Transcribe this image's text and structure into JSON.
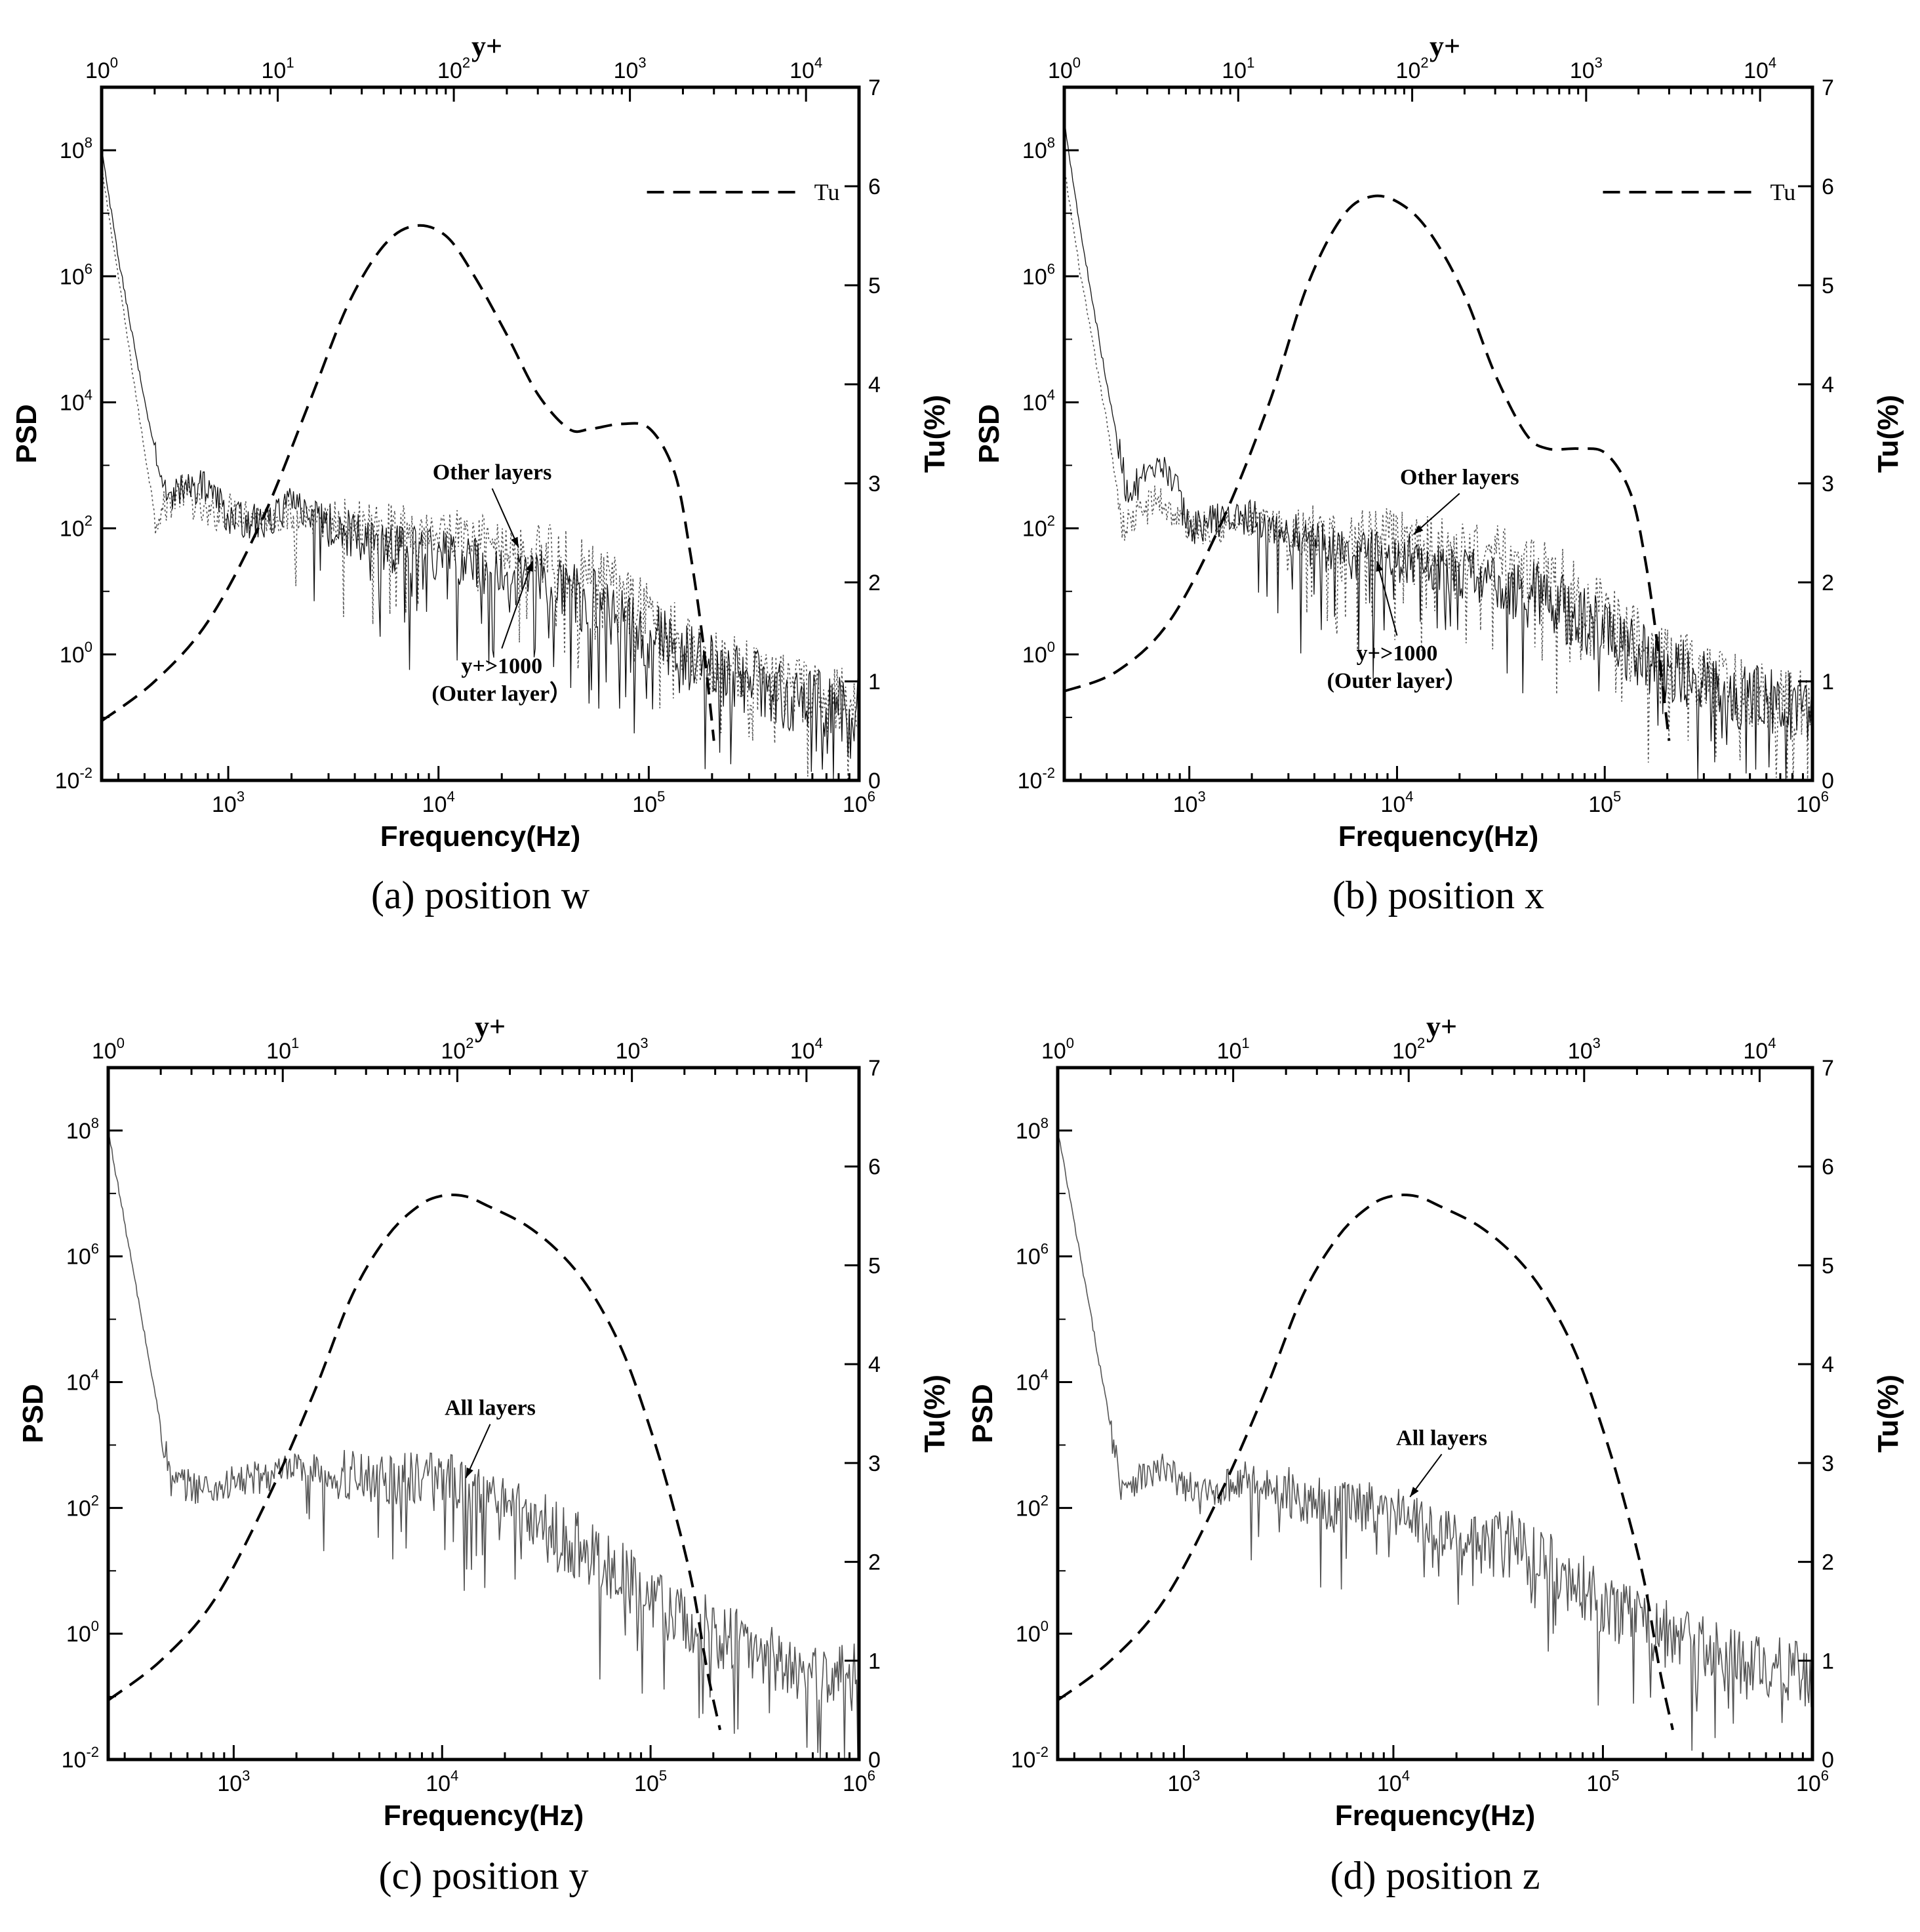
{
  "chart_data": [
    {
      "type": "line",
      "caption": "(a)  position w",
      "xlabel": "Frequency(Hz)",
      "ylabel": "PSD",
      "y2label": "Tu(%)",
      "top_axis_label": "y+",
      "xscale": "log",
      "yscale": "log",
      "xlim": [
        250,
        1000000
      ],
      "ylim": [
        0.01,
        1000000000
      ],
      "y2lim": [
        0,
        7
      ],
      "top_xlim": [
        1,
        20000
      ],
      "x_ticks": [
        {
          "base": "10",
          "exp": "3"
        },
        {
          "base": "10",
          "exp": "4"
        },
        {
          "base": "10",
          "exp": "5"
        },
        {
          "base": "10",
          "exp": "6"
        }
      ],
      "y_ticks": [
        {
          "base": "10",
          "exp": "-2"
        },
        {
          "base": "10",
          "exp": "0"
        },
        {
          "base": "10",
          "exp": "2"
        },
        {
          "base": "10",
          "exp": "4"
        },
        {
          "base": "10",
          "exp": "6"
        },
        {
          "base": "10",
          "exp": "8"
        }
      ],
      "y2_ticks": [
        "0",
        "1",
        "2",
        "3",
        "4",
        "5",
        "6",
        "7"
      ],
      "top_ticks": [
        {
          "base": "10",
          "exp": "0"
        },
        {
          "base": "10",
          "exp": "1"
        },
        {
          "base": "10",
          "exp": "2"
        },
        {
          "base": "10",
          "exp": "3"
        },
        {
          "base": "10",
          "exp": "4"
        }
      ],
      "legend": {
        "label": "Tu",
        "position": "top-right"
      },
      "annotations": [
        {
          "lines": [
            "Other layers"
          ],
          "at": [
            18000,
            600
          ],
          "arrow_to": [
            24000,
            50
          ]
        },
        {
          "lines": [
            "y+>1000",
            "(Outer layer）"
          ],
          "at": [
            20000,
            0.5
          ],
          "arrow_to": [
            28000,
            30
          ]
        }
      ],
      "tu_series": {
        "name": "Tu",
        "yplus": [
          1,
          2,
          4,
          8,
          15,
          25,
          40,
          60,
          90,
          130,
          200,
          300,
          450,
          600,
          900,
          1300,
          1800,
          2200,
          2600,
          3000
        ],
        "values": [
          0.6,
          1.0,
          1.6,
          2.6,
          3.8,
          4.8,
          5.4,
          5.6,
          5.5,
          5.1,
          4.5,
          3.9,
          3.55,
          3.55,
          3.6,
          3.55,
          3.1,
          2.3,
          1.4,
          0.4
        ]
      },
      "psd_series": [
        {
          "name": "Other layers",
          "style": "dotted",
          "points": [
            [
              250,
              50000000
            ],
            [
              300,
              1000000
            ],
            [
              380,
              5000
            ],
            [
              450,
              150
            ],
            [
              600,
              400
            ],
            [
              800,
              150
            ],
            [
              1000,
              200
            ],
            [
              1500,
              150
            ],
            [
              2000,
              150
            ],
            [
              5000,
              100
            ],
            [
              10000,
              90
            ],
            [
              30000,
              40
            ],
            [
              60000,
              15
            ],
            [
              100000,
              4
            ],
            [
              200000,
              0.8
            ],
            [
              500000,
              0.25
            ],
            [
              1000000,
              0.15
            ]
          ]
        },
        {
          "name": "y+>1000 (Outer layer)",
          "style": "solid",
          "points": [
            [
              250,
              100000000
            ],
            [
              300,
              2000000
            ],
            [
              400,
              10000
            ],
            [
              500,
              350
            ],
            [
              800,
              500
            ],
            [
              1000,
              150
            ],
            [
              1500,
              120
            ],
            [
              2000,
              250
            ],
            [
              5000,
              50
            ],
            [
              10000,
              40
            ],
            [
              30000,
              15
            ],
            [
              60000,
              6
            ],
            [
              100000,
              2
            ],
            [
              200000,
              0.6
            ],
            [
              500000,
              0.2
            ],
            [
              1000000,
              0.12
            ]
          ]
        }
      ]
    },
    {
      "type": "line",
      "caption": "(b)  position x",
      "xlabel": "Frequency(Hz)",
      "ylabel": "PSD",
      "y2label": "Tu(%)",
      "top_axis_label": "y+",
      "xscale": "log",
      "yscale": "log",
      "xlim": [
        250,
        1000000
      ],
      "ylim": [
        0.01,
        1000000000
      ],
      "y2lim": [
        0,
        7
      ],
      "top_xlim": [
        1,
        20000
      ],
      "x_ticks": [
        {
          "base": "10",
          "exp": "3"
        },
        {
          "base": "10",
          "exp": "4"
        },
        {
          "base": "10",
          "exp": "5"
        },
        {
          "base": "10",
          "exp": "6"
        }
      ],
      "y_ticks": [
        {
          "base": "10",
          "exp": "-2"
        },
        {
          "base": "10",
          "exp": "0"
        },
        {
          "base": "10",
          "exp": "2"
        },
        {
          "base": "10",
          "exp": "4"
        },
        {
          "base": "10",
          "exp": "6"
        },
        {
          "base": "10",
          "exp": "8"
        }
      ],
      "y2_ticks": [
        "0",
        "1",
        "2",
        "3",
        "4",
        "5",
        "6",
        "7"
      ],
      "top_ticks": [
        {
          "base": "10",
          "exp": "0"
        },
        {
          "base": "10",
          "exp": "1"
        },
        {
          "base": "10",
          "exp": "2"
        },
        {
          "base": "10",
          "exp": "3"
        },
        {
          "base": "10",
          "exp": "4"
        }
      ],
      "legend": {
        "label": "Tu",
        "position": "top-right"
      },
      "annotations": [
        {
          "lines": [
            "Other layers"
          ],
          "at": [
            20000,
            500
          ],
          "arrow_to": [
            12000,
            80
          ]
        },
        {
          "lines": [
            "y+>1000",
            "(Outer layer）"
          ],
          "at": [
            10000,
            0.8
          ],
          "arrow_to": [
            8000,
            30
          ]
        }
      ],
      "tu_series": {
        "name": "Tu",
        "yplus": [
          1,
          2,
          4,
          8,
          15,
          25,
          40,
          60,
          90,
          130,
          200,
          300,
          450,
          600,
          900,
          1300,
          1800,
          2200,
          2600,
          3000
        ],
        "values": [
          0.9,
          1.1,
          1.6,
          2.6,
          3.8,
          5.0,
          5.7,
          5.9,
          5.8,
          5.5,
          4.9,
          4.1,
          3.5,
          3.35,
          3.35,
          3.3,
          2.9,
          2.2,
          1.3,
          0.4
        ]
      },
      "psd_series": [
        {
          "name": "Other layers",
          "style": "dotted",
          "points": [
            [
              250,
              50000000
            ],
            [
              300,
              1000000
            ],
            [
              400,
              5000
            ],
            [
              480,
              100
            ],
            [
              700,
              300
            ],
            [
              1000,
              100
            ],
            [
              2000,
              120
            ],
            [
              5000,
              80
            ],
            [
              10000,
              80
            ],
            [
              30000,
              40
            ],
            [
              60000,
              15
            ],
            [
              100000,
              4
            ],
            [
              200000,
              0.8
            ],
            [
              500000,
              0.25
            ],
            [
              1000000,
              0.15
            ]
          ]
        },
        {
          "name": "y+>1000 (Outer layer)",
          "style": "solid",
          "points": [
            [
              250,
              300000000
            ],
            [
              300,
              5000000
            ],
            [
              400,
              20000
            ],
            [
              500,
              400
            ],
            [
              800,
              900
            ],
            [
              1000,
              100
            ],
            [
              1500,
              150
            ],
            [
              2000,
              150
            ],
            [
              5000,
              40
            ],
            [
              10000,
              35
            ],
            [
              30000,
              15
            ],
            [
              60000,
              6
            ],
            [
              100000,
              2
            ],
            [
              200000,
              0.6
            ],
            [
              500000,
              0.2
            ],
            [
              1000000,
              0.12
            ]
          ]
        }
      ]
    },
    {
      "type": "line",
      "caption": "(c)  position y",
      "xlabel": "Frequency(Hz)",
      "ylabel": "PSD",
      "y2label": "Tu(%)",
      "top_axis_label": "y+",
      "xscale": "log",
      "yscale": "log",
      "xlim": [
        250,
        1000000
      ],
      "ylim": [
        0.01,
        1000000000
      ],
      "y2lim": [
        0,
        7
      ],
      "top_xlim": [
        1,
        20000
      ],
      "x_ticks": [
        {
          "base": "10",
          "exp": "3"
        },
        {
          "base": "10",
          "exp": "4"
        },
        {
          "base": "10",
          "exp": "5"
        },
        {
          "base": "10",
          "exp": "6"
        }
      ],
      "y_ticks": [
        {
          "base": "10",
          "exp": "-2"
        },
        {
          "base": "10",
          "exp": "0"
        },
        {
          "base": "10",
          "exp": "2"
        },
        {
          "base": "10",
          "exp": "4"
        },
        {
          "base": "10",
          "exp": "6"
        },
        {
          "base": "10",
          "exp": "8"
        }
      ],
      "y2_ticks": [
        "0",
        "1",
        "2",
        "3",
        "4",
        "5",
        "6",
        "7"
      ],
      "top_ticks": [
        {
          "base": "10",
          "exp": "0"
        },
        {
          "base": "10",
          "exp": "1"
        },
        {
          "base": "10",
          "exp": "2"
        },
        {
          "base": "10",
          "exp": "3"
        },
        {
          "base": "10",
          "exp": "4"
        }
      ],
      "annotations": [
        {
          "lines": [
            "All layers"
          ],
          "at": [
            17000,
            3000
          ],
          "arrow_to": [
            13000,
            300
          ]
        }
      ],
      "tu_series": {
        "name": "Tu",
        "yplus": [
          1,
          2,
          4,
          8,
          15,
          25,
          40,
          60,
          80,
          110,
          150,
          250,
          400,
          600,
          900,
          1300,
          1700,
          2200,
          2700,
          3200
        ],
        "values": [
          0.6,
          1.0,
          1.6,
          2.6,
          3.7,
          4.7,
          5.3,
          5.6,
          5.7,
          5.7,
          5.6,
          5.4,
          5.1,
          4.7,
          4.1,
          3.3,
          2.6,
          1.8,
          0.9,
          0.3
        ]
      },
      "psd_series": [
        {
          "name": "All layers",
          "style": "solid",
          "points": [
            [
              250,
              100000000
            ],
            [
              500,
              250
            ],
            [
              800,
              200
            ],
            [
              1000,
              250
            ],
            [
              2000,
              400
            ],
            [
              5000,
              300
            ],
            [
              10000,
              300
            ],
            [
              20000,
              150
            ],
            [
              30000,
              50
            ],
            [
              60000,
              15
            ],
            [
              100000,
              4
            ],
            [
              200000,
              1
            ],
            [
              500000,
              0.3
            ],
            [
              1000000,
              0.2
            ]
          ]
        }
      ]
    },
    {
      "type": "line",
      "caption": "(d)  position z",
      "xlabel": "Frequency(Hz)",
      "ylabel": "PSD",
      "y2label": "Tu(%)",
      "top_axis_label": "y+",
      "xscale": "log",
      "yscale": "log",
      "xlim": [
        250,
        1000000
      ],
      "ylim": [
        0.01,
        1000000000
      ],
      "y2lim": [
        0,
        7
      ],
      "top_xlim": [
        1,
        20000
      ],
      "x_ticks": [
        {
          "base": "10",
          "exp": "3"
        },
        {
          "base": "10",
          "exp": "4"
        },
        {
          "base": "10",
          "exp": "5"
        },
        {
          "base": "10",
          "exp": "6"
        }
      ],
      "y_ticks": [
        {
          "base": "10",
          "exp": "-2"
        },
        {
          "base": "10",
          "exp": "0"
        },
        {
          "base": "10",
          "exp": "2"
        },
        {
          "base": "10",
          "exp": "4"
        },
        {
          "base": "10",
          "exp": "6"
        },
        {
          "base": "10",
          "exp": "8"
        }
      ],
      "y2_ticks": [
        "0",
        "1",
        "2",
        "3",
        "4",
        "5",
        "6",
        "7"
      ],
      "top_ticks": [
        {
          "base": "10",
          "exp": "0"
        },
        {
          "base": "10",
          "exp": "1"
        },
        {
          "base": "10",
          "exp": "2"
        },
        {
          "base": "10",
          "exp": "3"
        },
        {
          "base": "10",
          "exp": "4"
        }
      ],
      "annotations": [
        {
          "lines": [
            "All layers"
          ],
          "at": [
            17000,
            1000
          ],
          "arrow_to": [
            12000,
            150
          ]
        }
      ],
      "tu_series": {
        "name": "Tu",
        "yplus": [
          1,
          2,
          4,
          8,
          15,
          25,
          40,
          60,
          80,
          110,
          150,
          250,
          400,
          600,
          900,
          1300,
          1700,
          2200,
          2700,
          3200
        ],
        "values": [
          0.6,
          1.0,
          1.6,
          2.6,
          3.7,
          4.7,
          5.3,
          5.6,
          5.7,
          5.7,
          5.6,
          5.4,
          5.1,
          4.7,
          4.1,
          3.3,
          2.6,
          1.8,
          0.9,
          0.3
        ]
      },
      "psd_series": [
        {
          "name": "All layers",
          "style": "solid",
          "points": [
            [
              250,
              100000000
            ],
            [
              500,
              250
            ],
            [
              800,
              400
            ],
            [
              1200,
              150
            ],
            [
              2000,
              300
            ],
            [
              5000,
              100
            ],
            [
              10000,
              100
            ],
            [
              20000,
              30
            ],
            [
              40000,
              25
            ],
            [
              60000,
              10
            ],
            [
              100000,
              3
            ],
            [
              200000,
              1
            ],
            [
              500000,
              0.3
            ],
            [
              1000000,
              0.2
            ]
          ]
        }
      ]
    }
  ]
}
